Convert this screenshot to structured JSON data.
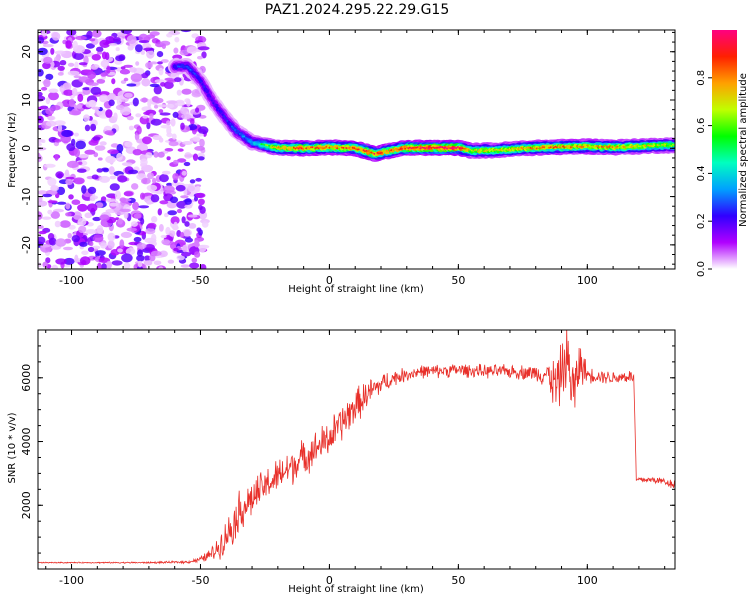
{
  "title": "PAZ1.2024.295.22.29.G15",
  "chart_data": [
    {
      "type": "heatmap",
      "xlabel": "Height of straight line (km)",
      "ylabel": "Frequency (Hz)",
      "xlim": [
        -113,
        134
      ],
      "ylim": [
        -25,
        24.5
      ],
      "x_ticks": [
        "-100",
        "-50",
        "0",
        "50",
        "100"
      ],
      "y_ticks": [
        "-20",
        "-10",
        "0",
        "10",
        "20"
      ],
      "colorbar": {
        "label": "Normalized spectral amplitude",
        "range": [
          0,
          1
        ],
        "ticks": [
          "0.0",
          "0.2",
          "0.4",
          "0.6",
          "0.8"
        ],
        "colormap": [
          "#ffffff",
          "#b000ff",
          "#3000ff",
          "#00a0ff",
          "#00ffc0",
          "#00ff00",
          "#c0ff00",
          "#ffa000",
          "#ff2000",
          "#ff0080"
        ]
      },
      "noise_region": {
        "x_range": [
          -113,
          -48
        ],
        "y_range": [
          -25,
          24.5
        ],
        "amplitude": [
          0.02,
          0.22
        ]
      },
      "ridge": [
        {
          "x": -60,
          "f": 16.9,
          "a": 0.25
        },
        {
          "x": -55,
          "f": 17.0,
          "a": 0.28
        },
        {
          "x": -50,
          "f": 14.0,
          "a": 0.24
        },
        {
          "x": -45,
          "f": 9.5,
          "a": 0.22
        },
        {
          "x": -40,
          "f": 6.0,
          "a": 0.25
        },
        {
          "x": -36,
          "f": 3.5,
          "a": 0.28
        },
        {
          "x": -30,
          "f": 1.2,
          "a": 0.35
        },
        {
          "x": -20,
          "f": 0.1,
          "a": 0.75
        },
        {
          "x": -10,
          "f": 0.0,
          "a": 0.85
        },
        {
          "x": 0,
          "f": 0.2,
          "a": 0.8
        },
        {
          "x": 10,
          "f": 0.0,
          "a": 0.85
        },
        {
          "x": 18,
          "f": -1.2,
          "a": 0.85
        },
        {
          "x": 25,
          "f": -0.3,
          "a": 0.8
        },
        {
          "x": 30,
          "f": 0.1,
          "a": 0.9
        },
        {
          "x": 40,
          "f": 0.1,
          "a": 0.95
        },
        {
          "x": 50,
          "f": 0.1,
          "a": 0.95
        },
        {
          "x": 55,
          "f": -0.5,
          "a": 0.7
        },
        {
          "x": 65,
          "f": -0.4,
          "a": 0.7
        },
        {
          "x": 75,
          "f": 0.0,
          "a": 0.75
        },
        {
          "x": 85,
          "f": 0.2,
          "a": 0.8
        },
        {
          "x": 100,
          "f": 0.4,
          "a": 0.75
        },
        {
          "x": 110,
          "f": 0.2,
          "a": 0.75
        },
        {
          "x": 120,
          "f": 0.4,
          "a": 0.7
        },
        {
          "x": 130,
          "f": 0.6,
          "a": 0.65
        },
        {
          "x": 134,
          "f": 0.6,
          "a": 0.6
        }
      ]
    },
    {
      "type": "line",
      "xlabel": "Height of straight line (km)",
      "ylabel": "SNR (10 * v/v)",
      "xlim": [
        -113,
        134
      ],
      "ylim": [
        0,
        7500
      ],
      "x_ticks": [
        "-100",
        "-50",
        "0",
        "50",
        "100"
      ],
      "y_ticks": [
        "2000",
        "4000",
        "6000"
      ],
      "series": [
        {
          "color": "#e8302a",
          "x": [
            -113,
            -90,
            -70,
            -55,
            -50,
            -45,
            -42,
            -38,
            -35,
            -30,
            -25,
            -20,
            -15,
            -10,
            -5,
            0,
            5,
            10,
            15,
            20,
            25,
            30,
            35,
            40,
            50,
            60,
            70,
            80,
            85,
            88,
            90,
            92,
            95,
            97,
            100,
            105,
            110,
            116,
            118,
            119,
            125,
            130,
            134
          ],
          "y": [
            200,
            200,
            200,
            220,
            300,
            500,
            800,
            1300,
            1800,
            2200,
            2600,
            2900,
            3200,
            3500,
            3800,
            4100,
            4600,
            5100,
            5500,
            5800,
            6000,
            6100,
            6200,
            6200,
            6250,
            6200,
            6200,
            6150,
            6100,
            5700,
            6200,
            6600,
            5500,
            6500,
            6100,
            6050,
            6000,
            6050,
            6000,
            2800,
            2800,
            2750,
            2650
          ],
          "noise_amplitude": [
            20,
            20,
            30,
            50,
            100,
            300,
            500,
            700,
            800,
            700,
            650,
            650,
            700,
            650,
            650,
            700,
            700,
            650,
            550,
            400,
            300,
            250,
            250,
            250,
            250,
            250,
            250,
            300,
            500,
            1200,
            1000,
            1300,
            1200,
            900,
            300,
            250,
            250,
            250,
            250,
            120,
            120,
            150,
            200
          ]
        }
      ]
    }
  ]
}
